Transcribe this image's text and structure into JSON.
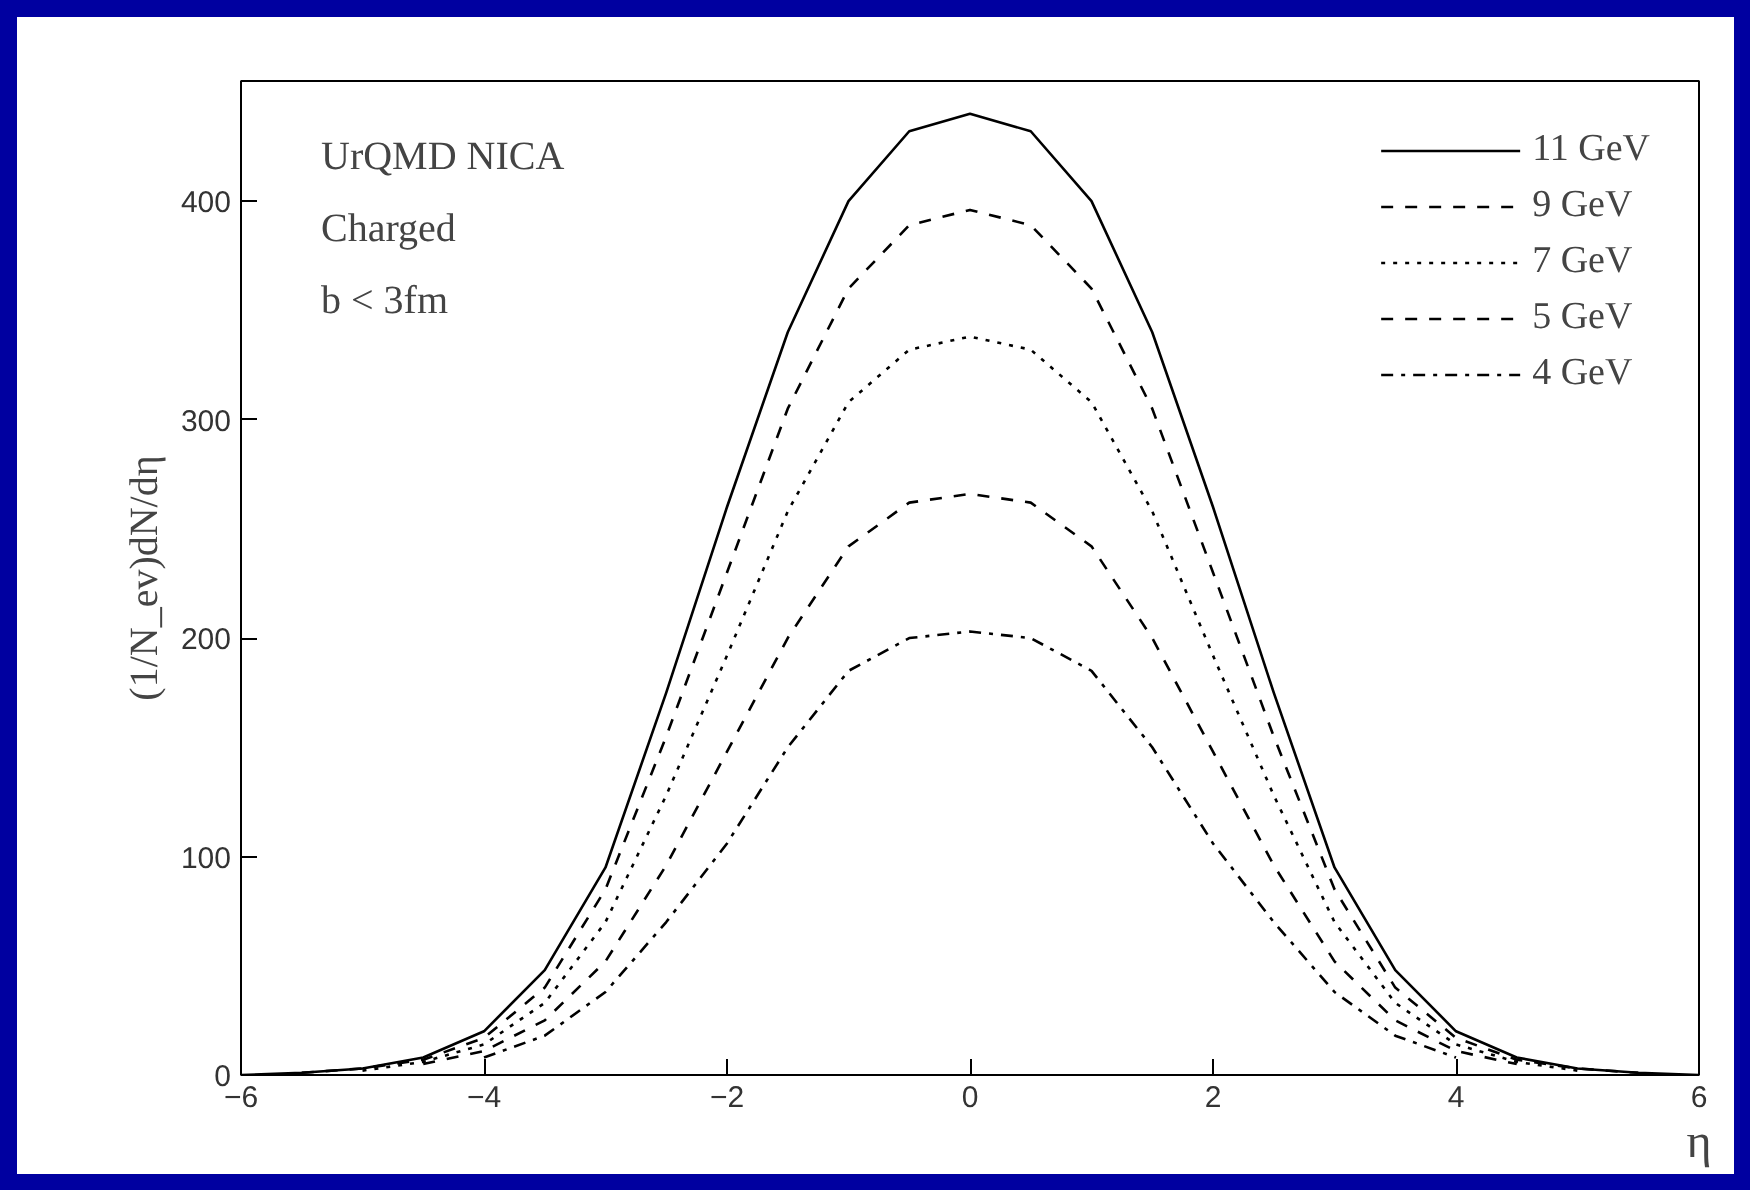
{
  "chart_data": {
    "type": "line",
    "xlabel": "η",
    "ylabel": "(1/N_ev)dN/dη",
    "annotations": [
      "UrQMD NICA",
      "Charged",
      "b < 3fm"
    ],
    "x": [
      -5.5,
      -5,
      -4.5,
      -4,
      -3.5,
      -3,
      -2.5,
      -2,
      -1.5,
      -1,
      -0.5,
      0,
      0.5,
      1,
      1.5,
      2,
      2.5,
      3,
      3.5,
      4,
      4.5,
      5,
      5.5
    ],
    "series": [
      {
        "name": "11 GeV",
        "color": "#000000",
        "line_style": "solid",
        "x": [
          -6,
          -5.5,
          -5,
          -4.5,
          -4,
          -3.5,
          -3,
          -2.5,
          -2,
          -1.5,
          -1,
          -0.5,
          0,
          0.5,
          1,
          1.5,
          2,
          2.5,
          3,
          3.5,
          4,
          4.5,
          5,
          5.5,
          6
        ],
        "values": [
          0,
          1,
          3,
          8,
          20,
          48,
          95,
          175,
          260,
          340,
          400,
          432,
          440,
          432,
          400,
          340,
          260,
          175,
          95,
          48,
          20,
          8,
          3,
          1,
          0
        ]
      },
      {
        "name": "9 GeV",
        "color": "#000000",
        "line_style": "dashed",
        "values": [
          1,
          3,
          7,
          17,
          40,
          85,
          155,
          230,
          305,
          360,
          389,
          396,
          389,
          360,
          305,
          230,
          155,
          85,
          40,
          17,
          7,
          3,
          1
        ]
      },
      {
        "name": "7 GeV",
        "color": "#000000",
        "line_style": "dotted",
        "x": [
          -5,
          -4.5,
          -4,
          -3.5,
          -3,
          -2.5,
          -2,
          -1.5,
          -1,
          -0.5,
          0,
          0.5,
          1,
          1.5,
          2,
          2.5,
          3,
          3.5,
          4,
          4.5,
          5
        ],
        "values": [
          2,
          6,
          14,
          33,
          70,
          128,
          192,
          258,
          308,
          332,
          338,
          332,
          308,
          258,
          192,
          128,
          70,
          33,
          14,
          6,
          2
        ]
      },
      {
        "name": "5 GeV",
        "color": "#000000",
        "line_style": "dashed",
        "x": [
          -4.5,
          -4,
          -3.5,
          -3,
          -2.5,
          -2,
          -1.5,
          -1,
          -0.5,
          0,
          0.5,
          1,
          1.5,
          2,
          2.5,
          3,
          3.5,
          4,
          4.5
        ],
        "values": [
          5,
          11,
          25,
          52,
          96,
          148,
          200,
          242,
          262,
          266,
          262,
          242,
          200,
          148,
          96,
          52,
          25,
          11,
          5
        ]
      },
      {
        "name": "4 GeV",
        "color": "#000000",
        "line_style": "dashdot",
        "x": [
          -4,
          -3.5,
          -3,
          -2.5,
          -2,
          -1.5,
          -1,
          -0.5,
          0,
          0.5,
          1,
          1.5,
          2,
          2.5,
          3,
          3.5,
          4
        ],
        "values": [
          8,
          18,
          38,
          70,
          106,
          150,
          185,
          200,
          203,
          200,
          185,
          150,
          106,
          70,
          38,
          18,
          8
        ]
      }
    ],
    "xlim": [
      -6,
      6
    ],
    "ylim": [
      0,
      455
    ],
    "xticks": [
      -6,
      -4,
      -2,
      0,
      2,
      4,
      6
    ],
    "yticks": [
      0,
      100,
      200,
      300,
      400
    ],
    "grid": false,
    "legend": "top right",
    "marker": "none"
  }
}
